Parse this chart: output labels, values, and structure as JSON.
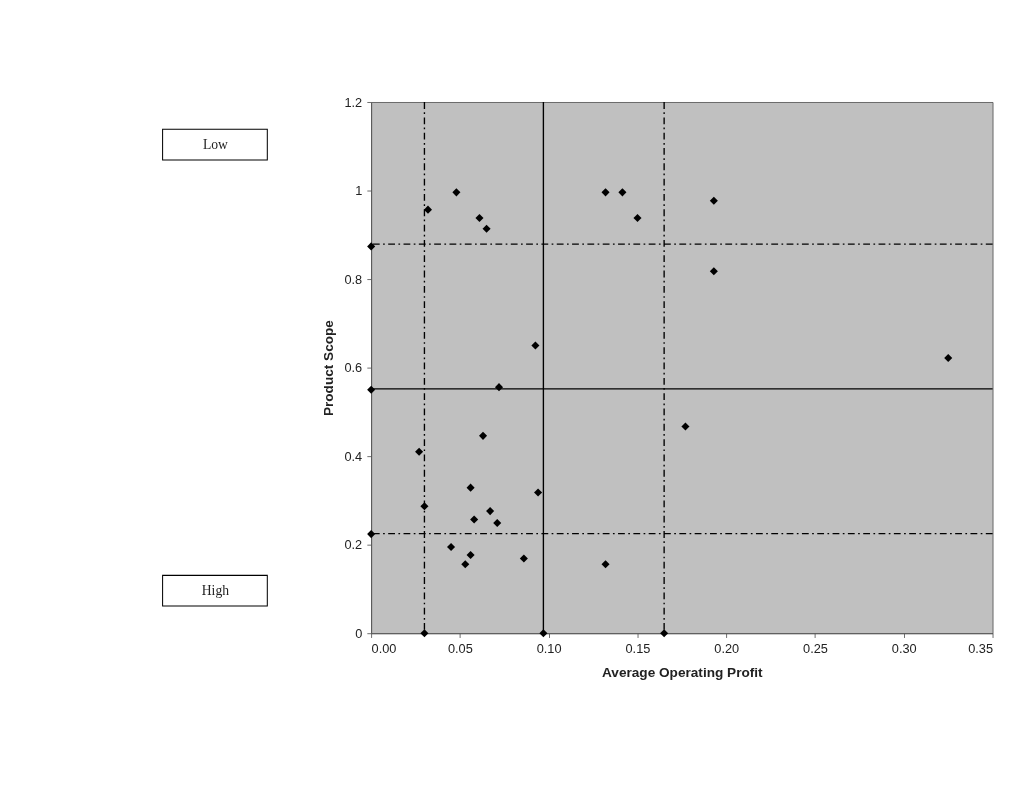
{
  "chart_data": {
    "type": "scatter",
    "xlabel": "Average Operating Profit",
    "ylabel": "Product Scope",
    "x": [
      0,
      0.032,
      0.048,
      0.061,
      0.065,
      0.0925,
      0.132,
      0.1415,
      0.15,
      0.193,
      0.193,
      0.325,
      0.177,
      0,
      0.072,
      0.063,
      0.027,
      0.056,
      0.094,
      0.03,
      0.067,
      0.058,
      0.071,
      0,
      0.045,
      0.056,
      0.053,
      0.086,
      0.132,
      0.03,
      0.097,
      0.165
    ],
    "values": [
      0.874,
      0.957,
      0.996,
      0.938,
      0.914,
      0.65,
      0.996,
      0.996,
      0.938,
      0.977,
      0.818,
      0.622,
      0.467,
      0.55,
      0.556,
      0.446,
      0.41,
      0.329,
      0.318,
      0.287,
      0.276,
      0.257,
      0.249,
      0.224,
      0.195,
      0.177,
      0.156,
      0.169,
      0.156,
      0,
      0,
      0
    ],
    "color": "#000000",
    "marker": "diamond",
    "xlim": [
      0,
      0.35
    ],
    "xticks": [
      {
        "value": 0,
        "label": "0.00"
      },
      {
        "value": 0.05,
        "label": "0.05"
      },
      {
        "value": 0.1,
        "label": "0.10"
      },
      {
        "value": 0.15,
        "label": "0.15"
      },
      {
        "value": 0.2,
        "label": "0.20"
      },
      {
        "value": 0.25,
        "label": "0.25"
      },
      {
        "value": 0.3,
        "label": "0.30"
      },
      {
        "value": 0.35,
        "label": "0.35"
      }
    ],
    "ylim": [
      0,
      1.2
    ],
    "yticks": [
      0,
      0.2,
      0.4,
      0.6,
      0.8,
      1,
      1.2
    ],
    "ref_lines": [
      {
        "axis": "x",
        "value": 0.03,
        "label": null,
        "line_style": "dashdot",
        "color": "#000000"
      },
      {
        "axis": "x",
        "value": 0.097,
        "label": null,
        "line_style": "solid",
        "color": "#000000"
      },
      {
        "axis": "x",
        "value": 0.165,
        "label": null,
        "line_style": "dashdot",
        "color": "#000000"
      },
      {
        "axis": "y",
        "value": 0.879,
        "label": null,
        "line_style": "dashdot",
        "color": "#000000"
      },
      {
        "axis": "y",
        "value": 0.552,
        "label": null,
        "line_style": "solid",
        "color": "#000000"
      },
      {
        "axis": "y",
        "value": 0.225,
        "label": null,
        "line_style": "dashdot",
        "color": "#000000"
      }
    ],
    "annotations": [
      "Low",
      "High"
    ]
  }
}
